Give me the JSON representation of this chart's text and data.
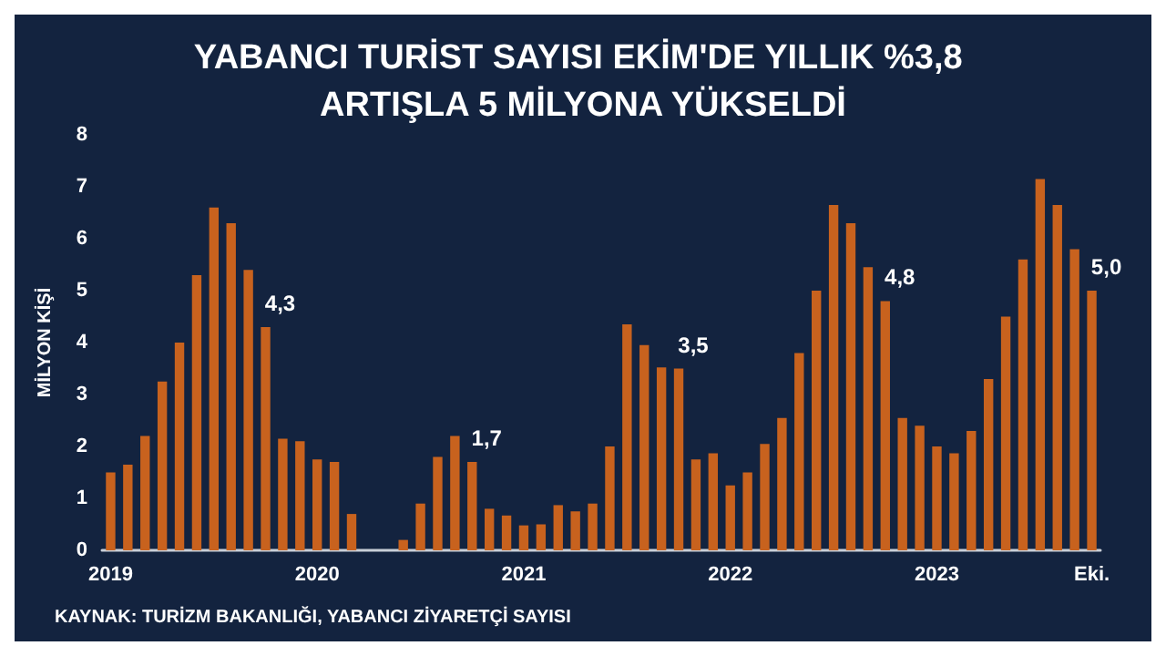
{
  "chart_data": {
    "type": "bar",
    "title": "YABANCI TURİST SAYISI EKİM'DE YILLIK %3,8 ARTIŞLA 5 MİLYONA YÜKSELDİ",
    "ylabel": "MİLYON KİŞİ",
    "annotations": [
      "KAYNAK: TURİZM BAKANLIĞI, YABANCI ZİYARETÇİ SAYISI"
    ],
    "categories": [
      "2019",
      null,
      null,
      null,
      null,
      null,
      null,
      null,
      null,
      null,
      null,
      null,
      "2020",
      null,
      null,
      null,
      null,
      null,
      null,
      null,
      null,
      null,
      null,
      null,
      "2021",
      null,
      null,
      null,
      null,
      null,
      null,
      null,
      null,
      null,
      null,
      null,
      "2022",
      null,
      null,
      null,
      null,
      null,
      null,
      null,
      null,
      null,
      null,
      null,
      "2023",
      null,
      null,
      null,
      null,
      null,
      null,
      null,
      null,
      "Eki."
    ],
    "values": [
      1.5,
      1.65,
      2.2,
      3.25,
      4.0,
      5.3,
      6.6,
      6.3,
      5.4,
      4.3,
      2.15,
      2.1,
      1.75,
      1.7,
      0.7,
      0,
      0,
      0.2,
      0.9,
      1.8,
      2.2,
      1.7,
      0.8,
      0.67,
      0.48,
      0.5,
      0.87,
      0.75,
      0.9,
      2.0,
      4.35,
      3.95,
      3.52,
      3.5,
      1.75,
      1.87,
      1.25,
      1.5,
      2.05,
      2.55,
      3.8,
      5.0,
      6.65,
      6.3,
      5.45,
      4.8,
      2.55,
      2.4,
      2.0,
      1.87,
      2.3,
      3.3,
      4.5,
      5.6,
      7.15,
      6.65,
      5.8,
      5.0
    ],
    "value_labels": [
      null,
      null,
      null,
      null,
      null,
      null,
      null,
      null,
      null,
      "4,3",
      null,
      null,
      null,
      null,
      null,
      null,
      null,
      null,
      null,
      null,
      null,
      "1,7",
      null,
      null,
      null,
      null,
      null,
      null,
      null,
      null,
      null,
      null,
      null,
      "3,5",
      null,
      null,
      null,
      null,
      null,
      null,
      null,
      null,
      null,
      null,
      null,
      "4,8",
      null,
      null,
      null,
      null,
      null,
      null,
      null,
      null,
      null,
      null,
      null,
      "5,0"
    ],
    "color": "#c8621e",
    "ylim": [
      0,
      8
    ],
    "yticks": [
      0,
      1,
      2,
      3,
      4,
      5,
      6,
      7,
      8
    ],
    "grid": false
  }
}
